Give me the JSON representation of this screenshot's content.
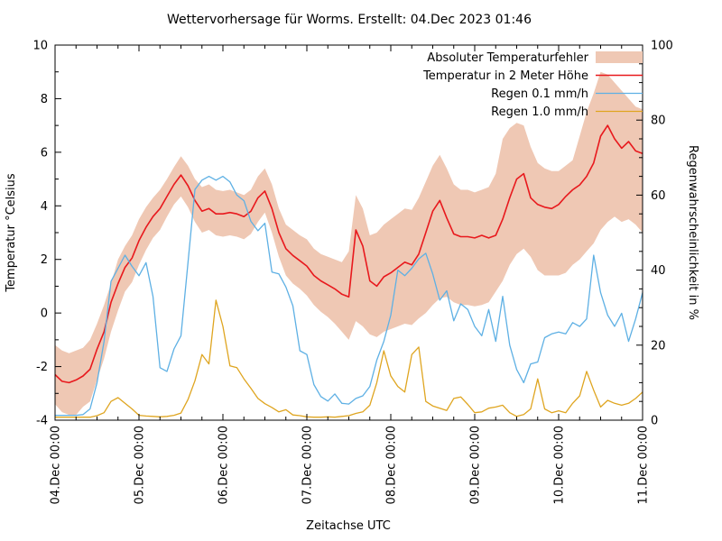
{
  "title": "Wettervorhersage für Worms. Erstellt: 04.Dec 2023 01:46",
  "colors": {
    "band": "#efc8b4",
    "temperature": "#e8191d",
    "rain01": "#5eb0e4",
    "rain10": "#dfa520",
    "axis": "#000000",
    "background": "#ffffff"
  },
  "chart_data": {
    "type": "line",
    "title": "Wettervorhersage für Worms. Erstellt: 04.Dec 2023 01:46",
    "xlabel": "Zeitachse UTC",
    "ylabel": "Temperatur °Celsius",
    "y2label": "Regenwahrscheinlichkeit in %",
    "ylim": [
      -4,
      10
    ],
    "y2lim": [
      0,
      100
    ],
    "y_ticks": [
      -4,
      -2,
      0,
      2,
      4,
      6,
      8,
      10
    ],
    "y2_ticks": [
      0,
      20,
      40,
      60,
      80,
      100
    ],
    "x_tick_labels": [
      "04.Dec 00:00",
      "05.Dec 00:00",
      "06.Dec 00:00",
      "07.Dec 00:00",
      "08.Dec 00:00",
      "09.Dec 00:00",
      "10.Dec 00:00",
      "11.Dec 00:00"
    ],
    "x_tick_hours": [
      0,
      24,
      48,
      72,
      96,
      120,
      144,
      168
    ],
    "x_minor_step_hours": 6,
    "legend_position": "top-right-inside",
    "grid": false,
    "x_hours": [
      0,
      2,
      4,
      6,
      8,
      10,
      12,
      14,
      16,
      18,
      20,
      22,
      24,
      26,
      28,
      30,
      32,
      34,
      36,
      38,
      40,
      42,
      44,
      46,
      48,
      50,
      52,
      54,
      56,
      58,
      60,
      62,
      64,
      66,
      68,
      70,
      72,
      74,
      76,
      78,
      80,
      82,
      84,
      86,
      88,
      90,
      92,
      94,
      96,
      98,
      100,
      102,
      104,
      106,
      108,
      110,
      112,
      114,
      116,
      118,
      120,
      122,
      124,
      126,
      128,
      130,
      132,
      134,
      136,
      138,
      140,
      142,
      144,
      146,
      148,
      150,
      152,
      154,
      156,
      158,
      160,
      162,
      164,
      166,
      168
    ],
    "series": [
      {
        "name": "Absoluter Temperaturfehler",
        "type": "band",
        "axis": "left",
        "color": "#efc8b4",
        "upper": [
          -1.2,
          -1.4,
          -1.5,
          -1.4,
          -1.3,
          -1.0,
          -0.4,
          0.3,
          1.1,
          2.0,
          2.5,
          2.9,
          3.5,
          3.95,
          4.3,
          4.6,
          5.0,
          5.45,
          5.85,
          5.5,
          5.0,
          4.7,
          4.8,
          4.6,
          4.55,
          4.6,
          4.5,
          4.4,
          4.6,
          5.1,
          5.4,
          4.8,
          3.9,
          3.3,
          3.1,
          2.9,
          2.75,
          2.4,
          2.2,
          2.1,
          2.0,
          1.9,
          2.3,
          4.4,
          3.9,
          2.9,
          3.0,
          3.3,
          3.5,
          3.7,
          3.9,
          3.85,
          4.3,
          4.9,
          5.5,
          5.9,
          5.4,
          4.8,
          4.6,
          4.6,
          4.5,
          4.6,
          4.7,
          5.2,
          6.5,
          6.9,
          7.1,
          7.0,
          6.2,
          5.6,
          5.4,
          5.3,
          5.3,
          5.5,
          5.7,
          6.6,
          7.5,
          8.2,
          9.0,
          8.9,
          8.6,
          8.3,
          8.0,
          7.7,
          7.6
        ],
        "lower": [
          -3.4,
          -3.7,
          -3.8,
          -3.8,
          -3.5,
          -3.3,
          -2.5,
          -1.7,
          -0.7,
          0.1,
          0.8,
          1.15,
          1.8,
          2.35,
          2.8,
          3.1,
          3.6,
          4.05,
          4.35,
          3.95,
          3.4,
          3.0,
          3.1,
          2.9,
          2.85,
          2.9,
          2.85,
          2.75,
          2.95,
          3.4,
          3.75,
          3.0,
          2.1,
          1.4,
          1.1,
          0.9,
          0.65,
          0.3,
          0.05,
          -0.15,
          -0.4,
          -0.7,
          -1.0,
          -0.3,
          -0.5,
          -0.8,
          -0.9,
          -0.7,
          -0.6,
          -0.5,
          -0.4,
          -0.45,
          -0.2,
          0.0,
          0.3,
          0.55,
          0.6,
          0.4,
          0.3,
          0.3,
          0.25,
          0.3,
          0.4,
          0.8,
          1.2,
          1.8,
          2.2,
          2.4,
          2.1,
          1.6,
          1.4,
          1.4,
          1.4,
          1.5,
          1.8,
          2.0,
          2.3,
          2.6,
          3.1,
          3.4,
          3.6,
          3.4,
          3.5,
          3.3,
          3.0
        ]
      },
      {
        "name": "Temperatur in 2 Meter Höhe",
        "type": "line",
        "axis": "left",
        "color": "#e8191d",
        "values": [
          -2.3,
          -2.55,
          -2.6,
          -2.5,
          -2.35,
          -2.1,
          -1.35,
          -0.7,
          0.4,
          1.1,
          1.7,
          2.05,
          2.7,
          3.2,
          3.6,
          3.9,
          4.35,
          4.8,
          5.15,
          4.75,
          4.2,
          3.8,
          3.9,
          3.7,
          3.7,
          3.75,
          3.7,
          3.6,
          3.8,
          4.3,
          4.55,
          3.9,
          3.0,
          2.4,
          2.15,
          1.95,
          1.75,
          1.4,
          1.2,
          1.05,
          0.9,
          0.7,
          0.6,
          3.1,
          2.5,
          1.2,
          1.0,
          1.35,
          1.5,
          1.7,
          1.9,
          1.8,
          2.2,
          3.0,
          3.8,
          4.2,
          3.55,
          2.95,
          2.85,
          2.85,
          2.8,
          2.9,
          2.8,
          2.9,
          3.5,
          4.3,
          5.0,
          5.2,
          4.3,
          4.05,
          3.95,
          3.9,
          4.05,
          4.35,
          4.6,
          4.78,
          5.1,
          5.6,
          6.6,
          7.0,
          6.5,
          6.15,
          6.4,
          6.05,
          5.95
        ]
      },
      {
        "name": "Regen 0.1 mm/h",
        "type": "line",
        "axis": "right",
        "color": "#5eb0e4",
        "values": [
          1.3,
          1.3,
          1.3,
          1.3,
          1.5,
          3,
          10,
          21,
          37,
          40.5,
          44,
          41,
          38.5,
          42,
          33,
          14,
          13,
          19,
          22.5,
          42,
          61.5,
          64,
          65,
          64,
          65,
          63.5,
          60,
          58.5,
          53,
          50.5,
          52.5,
          39.5,
          39,
          35.5,
          30.5,
          18.5,
          17.5,
          9.5,
          6.3,
          5.1,
          7,
          4.5,
          4.3,
          5.8,
          6.5,
          9,
          16,
          21,
          28,
          40,
          38.5,
          40.5,
          43,
          44.5,
          39,
          32,
          34.5,
          26.5,
          31,
          29.5,
          25,
          22.5,
          29.5,
          21,
          33,
          20,
          13.5,
          10,
          15,
          15.5,
          22,
          23,
          23.5,
          23,
          26,
          25,
          27,
          44,
          34,
          28,
          25,
          28.5,
          21,
          27,
          34
        ]
      },
      {
        "name": "Regen 1.0 mm/h",
        "type": "line",
        "axis": "right",
        "color": "#dfa520",
        "values": [
          0.8,
          0.8,
          0.8,
          0.8,
          0.8,
          0.8,
          1.2,
          2,
          5,
          6,
          4.5,
          3,
          1.3,
          1.1,
          1.0,
          0.9,
          1.0,
          1.3,
          1.9,
          5.5,
          10.5,
          17.5,
          15,
          32,
          25,
          14.5,
          14,
          11,
          8.5,
          5.8,
          4.4,
          3.4,
          2.2,
          2.8,
          1.4,
          1.2,
          0.9,
          0.8,
          0.8,
          0.9,
          0.8,
          1.0,
          1.2,
          1.8,
          2.2,
          4,
          10,
          18.5,
          11.8,
          9,
          7.5,
          17.5,
          19.5,
          5,
          3.8,
          3.2,
          2.6,
          5.8,
          6.2,
          4.2,
          2,
          2.2,
          3.2,
          3.5,
          4,
          2,
          1,
          1.5,
          3,
          11,
          3,
          2,
          2.5,
          2,
          4.5,
          6.5,
          13,
          8,
          3.5,
          5.3,
          4.5,
          4,
          4.5,
          5.8,
          7.5
        ]
      }
    ]
  }
}
